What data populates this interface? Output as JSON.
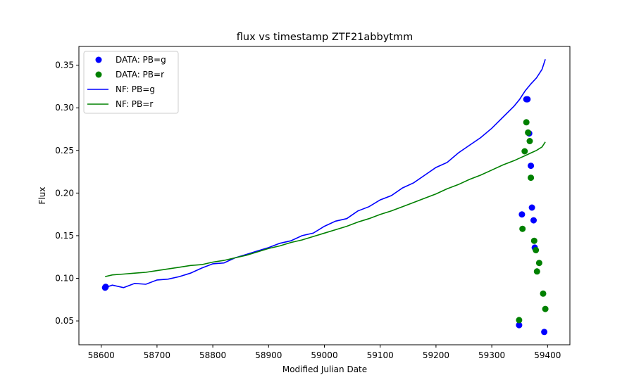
{
  "chart_data": {
    "type": "scatter",
    "title": "flux vs timestamp ZTF21abbytmm",
    "xlabel": "Modified Julian Date",
    "ylabel": "Flux",
    "xlim": [
      58560,
      59440
    ],
    "ylim": [
      0.022,
      0.372
    ],
    "xticks": [
      58600,
      58700,
      58800,
      58900,
      59000,
      59100,
      59200,
      59300,
      59400
    ],
    "yticks": [
      0.05,
      0.1,
      0.15,
      0.2,
      0.25,
      0.3,
      0.35
    ],
    "ytick_labels": [
      "0.05",
      "0.10",
      "0.15",
      "0.20",
      "0.25",
      "0.30",
      "0.35"
    ],
    "grid": false,
    "legend_position": "upper-left",
    "legend": [
      "DATA: PB=g",
      "DATA: PB=r",
      "NF: PB=g",
      "NF: PB=r"
    ],
    "colors": {
      "g": "#0000ff",
      "r": "#008000"
    },
    "scatter_series": [
      {
        "name": "DATA: PB=g",
        "color": "#0000ff",
        "points": [
          [
            58607,
            0.089
          ],
          [
            58608,
            0.09
          ],
          [
            59349,
            0.045
          ],
          [
            59354,
            0.175
          ],
          [
            59362,
            0.31
          ],
          [
            59364,
            0.31
          ],
          [
            59367,
            0.27
          ],
          [
            59370,
            0.232
          ],
          [
            59372,
            0.183
          ],
          [
            59375,
            0.168
          ],
          [
            59377,
            0.136
          ],
          [
            59394,
            0.037
          ]
        ]
      },
      {
        "name": "DATA: PB=r",
        "color": "#008000",
        "points": [
          [
            59349,
            0.051
          ],
          [
            59355,
            0.158
          ],
          [
            59359,
            0.249
          ],
          [
            59362,
            0.283
          ],
          [
            59365,
            0.271
          ],
          [
            59368,
            0.261
          ],
          [
            59370,
            0.218
          ],
          [
            59376,
            0.144
          ],
          [
            59379,
            0.133
          ],
          [
            59381,
            0.108
          ],
          [
            59385,
            0.118
          ],
          [
            59392,
            0.082
          ],
          [
            59396,
            0.064
          ]
        ]
      }
    ],
    "line_series": [
      {
        "name": "NF: PB=g",
        "color": "#0000ff",
        "points": [
          [
            58607,
            0.089
          ],
          [
            58620,
            0.092
          ],
          [
            58640,
            0.089
          ],
          [
            58660,
            0.094
          ],
          [
            58680,
            0.093
          ],
          [
            58700,
            0.098
          ],
          [
            58720,
            0.099
          ],
          [
            58740,
            0.102
          ],
          [
            58760,
            0.106
          ],
          [
            58780,
            0.112
          ],
          [
            58800,
            0.117
          ],
          [
            58820,
            0.118
          ],
          [
            58840,
            0.124
          ],
          [
            58860,
            0.128
          ],
          [
            58880,
            0.132
          ],
          [
            58900,
            0.136
          ],
          [
            58920,
            0.141
          ],
          [
            58940,
            0.144
          ],
          [
            58960,
            0.15
          ],
          [
            58980,
            0.153
          ],
          [
            59000,
            0.161
          ],
          [
            59020,
            0.167
          ],
          [
            59040,
            0.17
          ],
          [
            59060,
            0.179
          ],
          [
            59080,
            0.184
          ],
          [
            59100,
            0.192
          ],
          [
            59120,
            0.197
          ],
          [
            59140,
            0.206
          ],
          [
            59160,
            0.212
          ],
          [
            59180,
            0.221
          ],
          [
            59200,
            0.23
          ],
          [
            59220,
            0.236
          ],
          [
            59240,
            0.247
          ],
          [
            59260,
            0.256
          ],
          [
            59280,
            0.265
          ],
          [
            59300,
            0.276
          ],
          [
            59320,
            0.289
          ],
          [
            59340,
            0.302
          ],
          [
            59350,
            0.31
          ],
          [
            59360,
            0.32
          ],
          [
            59370,
            0.328
          ],
          [
            59380,
            0.335
          ],
          [
            59390,
            0.345
          ],
          [
            59396,
            0.357
          ]
        ]
      },
      {
        "name": "NF: PB=r",
        "color": "#008000",
        "points": [
          [
            58607,
            0.102
          ],
          [
            58620,
            0.104
          ],
          [
            58640,
            0.105
          ],
          [
            58660,
            0.106
          ],
          [
            58680,
            0.107
          ],
          [
            58700,
            0.109
          ],
          [
            58720,
            0.111
          ],
          [
            58740,
            0.113
          ],
          [
            58760,
            0.115
          ],
          [
            58780,
            0.116
          ],
          [
            58800,
            0.119
          ],
          [
            58820,
            0.121
          ],
          [
            58840,
            0.124
          ],
          [
            58860,
            0.127
          ],
          [
            58880,
            0.131
          ],
          [
            58900,
            0.135
          ],
          [
            58920,
            0.138
          ],
          [
            58940,
            0.142
          ],
          [
            58960,
            0.145
          ],
          [
            58980,
            0.149
          ],
          [
            59000,
            0.153
          ],
          [
            59020,
            0.157
          ],
          [
            59040,
            0.161
          ],
          [
            59060,
            0.166
          ],
          [
            59080,
            0.17
          ],
          [
            59100,
            0.175
          ],
          [
            59120,
            0.179
          ],
          [
            59140,
            0.184
          ],
          [
            59160,
            0.189
          ],
          [
            59180,
            0.194
          ],
          [
            59200,
            0.199
          ],
          [
            59220,
            0.205
          ],
          [
            59240,
            0.21
          ],
          [
            59260,
            0.216
          ],
          [
            59280,
            0.221
          ],
          [
            59300,
            0.227
          ],
          [
            59320,
            0.233
          ],
          [
            59340,
            0.238
          ],
          [
            59350,
            0.241
          ],
          [
            59360,
            0.244
          ],
          [
            59370,
            0.247
          ],
          [
            59380,
            0.25
          ],
          [
            59390,
            0.254
          ],
          [
            59396,
            0.26
          ]
        ]
      }
    ]
  }
}
